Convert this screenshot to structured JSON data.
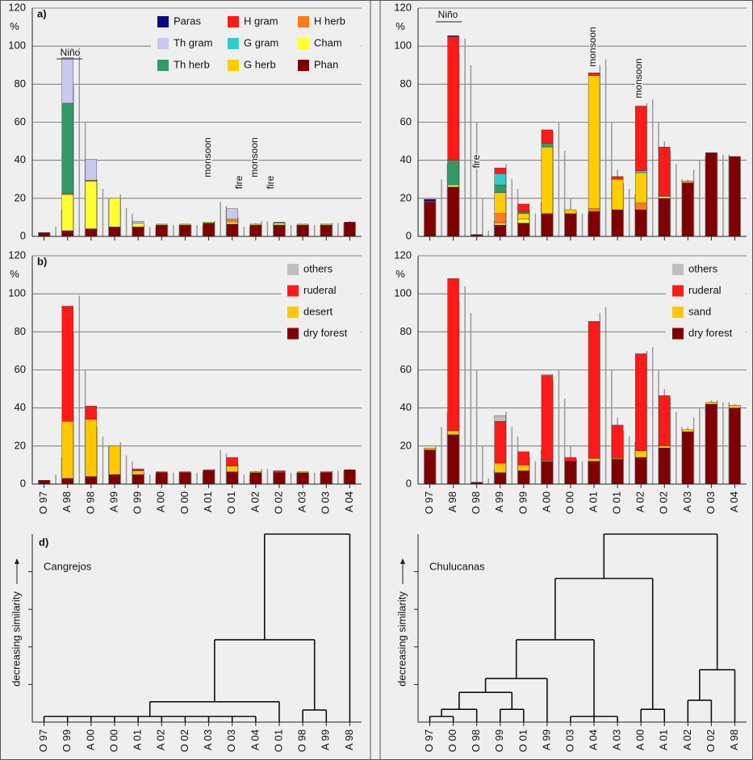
{
  "chart_data": [
    {
      "type": "stacked_bar",
      "label": "a)",
      "ylabel": "%",
      "ylim": [
        0,
        120
      ],
      "yticks": [
        0,
        20,
        40,
        60,
        80,
        100,
        120
      ],
      "grid": true,
      "legend": "top-right",
      "annotations": [
        "Niño",
        "monsoon",
        "fire",
        "monsoon",
        "fire"
      ],
      "series": [
        {
          "name": "Paras",
          "color": "#0a0a80",
          "values": [
            0,
            0,
            0,
            0,
            0,
            0,
            0,
            0,
            0,
            0,
            0,
            0,
            0,
            0
          ]
        },
        {
          "name": "Th gram",
          "color": "#c8c8f0",
          "values": [
            0,
            24,
            11,
            0,
            1,
            0,
            0,
            0,
            5.5,
            0,
            0,
            0,
            0,
            0
          ]
        },
        {
          "name": "Th herb",
          "color": "#339966",
          "values": [
            0,
            47.5,
            0,
            0,
            0,
            0,
            0,
            0,
            0,
            0,
            0.5,
            0,
            0,
            0
          ]
        },
        {
          "name": "H gram",
          "color": "#ff1a1a",
          "values": [
            0,
            0,
            0,
            0,
            0,
            0,
            0,
            0,
            0,
            0,
            0,
            0,
            0,
            0
          ]
        },
        {
          "name": "G gram",
          "color": "#33cccc",
          "values": [
            0,
            0,
            0,
            0,
            0,
            0,
            0,
            0,
            0,
            0,
            0,
            0,
            0,
            0
          ]
        },
        {
          "name": "G herb",
          "color": "#ffcc00",
          "values": [
            0,
            0,
            0,
            0,
            0,
            0,
            0,
            0,
            0,
            0,
            0,
            0,
            0,
            0
          ]
        },
        {
          "name": "H herb",
          "color": "#ff7a1a",
          "values": [
            0,
            0.5,
            0.5,
            0,
            0,
            0,
            0,
            0,
            1.5,
            0,
            0,
            0,
            0,
            0
          ]
        },
        {
          "name": "Cham",
          "color": "#ffff33",
          "values": [
            0,
            19,
            25,
            15,
            2,
            0.5,
            0.5,
            0.5,
            1,
            0.5,
            1,
            0.5,
            0.5,
            0
          ]
        },
        {
          "name": "Phan",
          "color": "#800000",
          "values": [
            2,
            3,
            4,
            5,
            5,
            6,
            6,
            7,
            6.5,
            6,
            6,
            6,
            6,
            7.5
          ]
        }
      ],
      "trace": [
        2,
        2,
        5,
        14,
        66,
        80,
        99,
        60,
        40,
        30,
        25,
        20,
        20,
        22,
        15,
        12,
        8,
        6,
        5,
        5,
        6,
        6,
        6,
        6,
        6,
        6,
        6,
        6,
        7,
        8,
        18,
        16,
        14,
        10,
        5,
        5,
        7,
        8,
        8,
        7,
        7,
        7,
        6,
        6,
        6,
        6,
        6,
        6,
        6,
        7,
        7,
        7,
        8
      ]
    },
    {
      "type": "stacked_bar",
      "ylabel": "%",
      "ylim": [
        0,
        120
      ],
      "yticks": [
        0,
        20,
        40,
        60,
        80,
        100,
        120
      ],
      "grid": true,
      "annotations": [
        "Niño",
        "fire",
        "monsoon",
        "monsoon"
      ],
      "series": [
        {
          "color": "#0a0a80",
          "values": [
            1,
            0.5,
            0,
            0,
            0,
            0,
            0,
            0,
            0,
            0,
            0,
            0,
            0,
            0
          ]
        },
        {
          "color": "#ff1a1a",
          "values": [
            0.5,
            65,
            0,
            3,
            4,
            7,
            0,
            1.5,
            1.5,
            34,
            26,
            0,
            0,
            0
          ]
        },
        {
          "color": "#33cccc",
          "values": [
            0,
            0,
            0,
            6,
            0,
            0,
            0,
            0,
            0,
            1,
            0,
            0,
            0,
            0
          ]
        },
        {
          "color": "#339966",
          "values": [
            0,
            13,
            0,
            4,
            1,
            2,
            0,
            0,
            0,
            0,
            0,
            0,
            0,
            0
          ]
        },
        {
          "color": "#ffcc00",
          "values": [
            0,
            0,
            0,
            11,
            3,
            35,
            2,
            70,
            16,
            16,
            0,
            0,
            0,
            0
          ]
        },
        {
          "color": "#ff7a1a",
          "values": [
            0,
            0,
            0,
            5,
            0,
            0,
            0,
            1.5,
            0,
            3.5,
            0,
            1,
            0,
            0
          ]
        },
        {
          "color": "#ffff33",
          "values": [
            0,
            1,
            0,
            1,
            2,
            0,
            0,
            0,
            0,
            0,
            1,
            0,
            0,
            0
          ]
        },
        {
          "color": "#800000",
          "values": [
            18,
            26,
            1,
            6,
            7,
            12,
            12,
            13,
            14,
            14,
            20,
            28,
            44,
            42
          ]
        }
      ],
      "trace": [
        18,
        20,
        30,
        38,
        59,
        96,
        104,
        90,
        60,
        20,
        3,
        8,
        30,
        38,
        30,
        25,
        16,
        14,
        12,
        18,
        35,
        55,
        60,
        45,
        20,
        13,
        12,
        12,
        30,
        90,
        93,
        60,
        35,
        28,
        25,
        22,
        40,
        70,
        72,
        60,
        50,
        45,
        38,
        30,
        30,
        35,
        40,
        42,
        44,
        44,
        43,
        43,
        42
      ]
    },
    {
      "type": "stacked_bar",
      "label": "b)",
      "ylabel": "%",
      "ylim": [
        0,
        120
      ],
      "yticks": [
        0,
        20,
        40,
        60,
        80,
        100,
        120
      ],
      "grid": true,
      "legend": "top-right",
      "categories": [
        "O 97",
        "A 98",
        "O 98",
        "A 99",
        "O 99",
        "A 00",
        "O 00",
        "A 01",
        "O 01",
        "A 02",
        "O 02",
        "A 03",
        "O 03",
        "A 04"
      ],
      "series": [
        {
          "name": "others",
          "color": "#bfbfbf",
          "values": [
            0,
            0,
            0,
            0,
            0,
            0,
            0,
            0,
            0,
            0,
            0,
            0,
            0,
            0
          ]
        },
        {
          "name": "ruderal",
          "color": "#ff1a1a",
          "values": [
            0,
            60.5,
            7,
            0,
            1,
            0.5,
            0.5,
            0.5,
            4.5,
            0,
            1,
            0,
            0.5,
            0
          ]
        },
        {
          "name": "desert",
          "color": "#ffc800",
          "values": [
            0,
            30,
            30,
            15,
            2,
            0,
            0,
            0,
            3,
            0.5,
            0,
            0.5,
            0,
            0
          ]
        },
        {
          "name": "dry forest",
          "color": "#800000",
          "values": [
            2,
            3,
            4,
            5,
            5,
            6,
            6,
            7,
            6.5,
            6,
            6,
            6,
            6,
            7.5
          ]
        }
      ],
      "trace": [
        2,
        2,
        5,
        14,
        66,
        80,
        99,
        60,
        40,
        30,
        25,
        20,
        20,
        22,
        15,
        12,
        8,
        6,
        5,
        5,
        6,
        6,
        6,
        6,
        6,
        6,
        6,
        6,
        7,
        8,
        18,
        16,
        14,
        10,
        5,
        5,
        7,
        8,
        8,
        7,
        7,
        7,
        6,
        6,
        6,
        6,
        6,
        6,
        6,
        7,
        7,
        7,
        8
      ]
    },
    {
      "type": "stacked_bar",
      "ylabel": "%",
      "ylim": [
        0,
        120
      ],
      "yticks": [
        0,
        20,
        40,
        60,
        80,
        100,
        120
      ],
      "grid": true,
      "legend": "top-right",
      "categories": [
        "O 97",
        "A 98",
        "O 98",
        "A 99",
        "O 99",
        "A 00",
        "O 00",
        "A 01",
        "O 01",
        "A 02",
        "O 02",
        "A 03",
        "O 03",
        "A 04"
      ],
      "series": [
        {
          "name": "others",
          "color": "#bfbfbf",
          "values": [
            0,
            0,
            0,
            3,
            0,
            0.5,
            0,
            0,
            0,
            0,
            0,
            0,
            0,
            0
          ]
        },
        {
          "name": "ruderal",
          "color": "#ff1a1a",
          "values": [
            0,
            80,
            0,
            22,
            7,
            44.5,
            2,
            72,
            17.5,
            51,
            26.5,
            0,
            0,
            0
          ]
        },
        {
          "name": "sand",
          "color": "#ffc800",
          "values": [
            1,
            2,
            0,
            5,
            3,
            0.5,
            0,
            1.5,
            0.5,
            3.5,
            1,
            1,
            1,
            1.5
          ]
        },
        {
          "name": "dry forest",
          "color": "#800000",
          "values": [
            18,
            26,
            1,
            6,
            7,
            12,
            12,
            12,
            13,
            14,
            19,
            27.5,
            42,
            40
          ]
        }
      ],
      "trace": [
        18,
        20,
        30,
        38,
        59,
        96,
        104,
        90,
        60,
        20,
        3,
        8,
        30,
        38,
        30,
        25,
        16,
        14,
        12,
        18,
        35,
        55,
        60,
        45,
        20,
        13,
        12,
        12,
        30,
        90,
        93,
        60,
        35,
        28,
        25,
        22,
        40,
        70,
        72,
        60,
        50,
        45,
        38,
        30,
        30,
        35,
        40,
        42,
        44,
        44,
        43,
        43,
        42
      ]
    },
    {
      "type": "dendrogram",
      "label": "d)",
      "title": "Cangrejos",
      "ylabel": "decreasing similarity",
      "ylim": [
        0,
        5
      ],
      "yticks": [
        1,
        2,
        3,
        4
      ],
      "leaves": [
        "O 97",
        "O 99",
        "A 00",
        "O 00",
        "A 01",
        "A 02",
        "O 02",
        "A 03",
        "O 03",
        "A 04",
        "O 01",
        "O 98",
        "A 99",
        "A 98"
      ],
      "merges": [
        {
          "children": [
            0,
            1,
            2,
            3,
            4,
            5,
            6,
            7,
            8,
            9
          ],
          "height": 0.15
        },
        {
          "children": [
            14,
            10
          ],
          "height": 0.54
        },
        {
          "children": [
            11,
            12
          ],
          "height": 0.32
        },
        {
          "children": [
            15,
            16
          ],
          "height": 2.19
        },
        {
          "children": [
            17,
            13
          ],
          "height": 5
        }
      ]
    },
    {
      "type": "dendrogram",
      "title": "Chulucanas",
      "ylabel": "decreasing similarity",
      "ylim": [
        0,
        5
      ],
      "yticks": [
        1,
        2,
        3,
        4
      ],
      "leaves": [
        "O 97",
        "O 00",
        "O 98",
        "O 99",
        "O 01",
        "A 99",
        "O 03",
        "A 04",
        "A 03",
        "A 00",
        "A 01",
        "A 02",
        "O 02",
        "A 98"
      ],
      "merges": [
        {
          "children": [
            0,
            1
          ],
          "height": 0.15
        },
        {
          "children": [
            14,
            2
          ],
          "height": 0.34
        },
        {
          "children": [
            3,
            4
          ],
          "height": 0.34
        },
        {
          "children": [
            15,
            16
          ],
          "height": 0.79
        },
        {
          "children": [
            17,
            5
          ],
          "height": 1.16
        },
        {
          "children": [
            6,
            7,
            8
          ],
          "height": 0.15
        },
        {
          "children": [
            18,
            19
          ],
          "height": 2.19
        },
        {
          "children": [
            9,
            10
          ],
          "height": 0.34
        },
        {
          "children": [
            20,
            21
          ],
          "height": 3.82
        },
        {
          "children": [
            11,
            12
          ],
          "height": 0.58
        },
        {
          "children": [
            23,
            13
          ],
          "height": 1.39
        },
        {
          "children": [
            22,
            24
          ],
          "height": 5
        }
      ]
    }
  ]
}
